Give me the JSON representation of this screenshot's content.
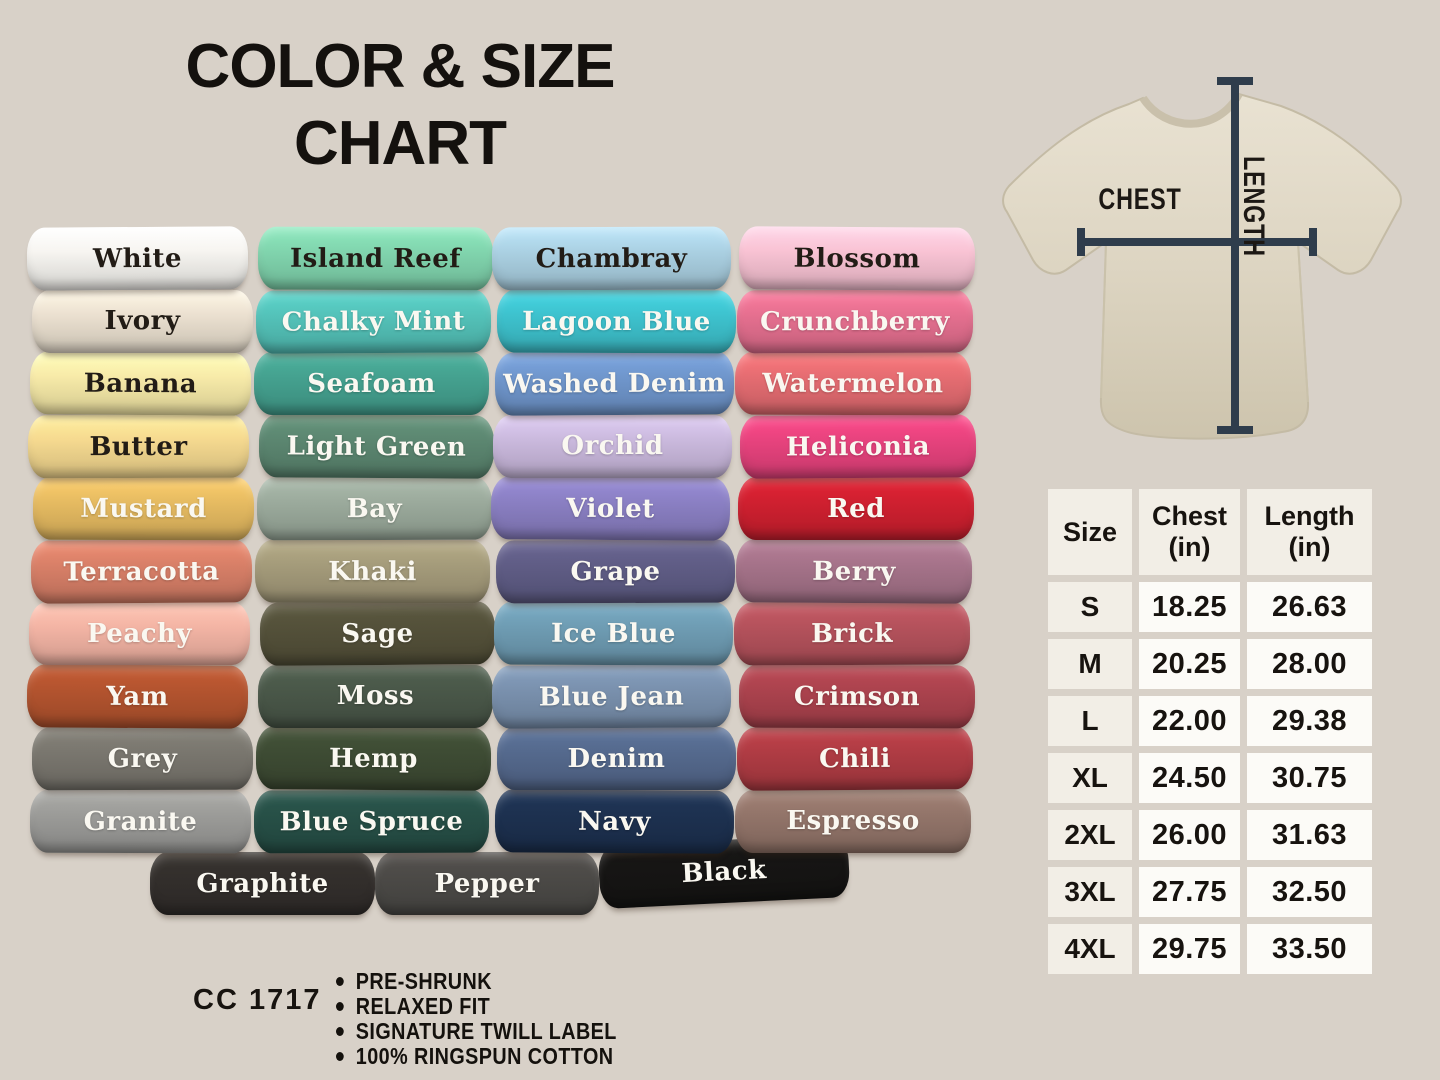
{
  "page": {
    "background": "#d8d1c8",
    "title_line1": "COLOR & SIZE",
    "title_line2": "CHART"
  },
  "color_grid": {
    "columns": [
      {
        "shirts": [
          {
            "name": "White",
            "hex": "#f7f5f1",
            "label": "dark"
          },
          {
            "name": "Ivory",
            "hex": "#ece1d1",
            "label": "dark"
          },
          {
            "name": "Banana",
            "hex": "#f8eba9",
            "label": "dark"
          },
          {
            "name": "Butter",
            "hex": "#f6da90",
            "label": "dark"
          },
          {
            "name": "Mustard",
            "hex": "#e7bc62",
            "label": "light"
          },
          {
            "name": "Terracotta",
            "hex": "#d98068",
            "label": "light"
          },
          {
            "name": "Peachy",
            "hex": "#f4b5a5",
            "label": "light"
          },
          {
            "name": "Yam",
            "hex": "#b4542f",
            "label": "light"
          },
          {
            "name": "Grey",
            "hex": "#7a776f",
            "label": "light"
          },
          {
            "name": "Granite",
            "hex": "#9c9c99",
            "label": "light"
          }
        ]
      },
      {
        "shirts": [
          {
            "name": "Island Reef",
            "hex": "#81d5ae",
            "label": "dark"
          },
          {
            "name": "Chalky Mint",
            "hex": "#54c3ba",
            "label": "light"
          },
          {
            "name": "Seafoam",
            "hex": "#45a290",
            "label": "light"
          },
          {
            "name": "Light Green",
            "hex": "#5c8771",
            "label": "light"
          },
          {
            "name": "Bay",
            "hex": "#9cab9d",
            "label": "light"
          },
          {
            "name": "Khaki",
            "hex": "#a59c7b",
            "label": "light"
          },
          {
            "name": "Sage",
            "hex": "#54513a",
            "label": "light"
          },
          {
            "name": "Moss",
            "hex": "#4a5849",
            "label": "light"
          },
          {
            "name": "Hemp",
            "hex": "#3e4c34",
            "label": "light"
          },
          {
            "name": "Blue Spruce",
            "hex": "#275047",
            "label": "light"
          }
        ]
      },
      {
        "shirts": [
          {
            "name": "Chambray",
            "hex": "#abd1e3",
            "label": "dark"
          },
          {
            "name": "Lagoon Blue",
            "hex": "#3ec3cf",
            "label": "light"
          },
          {
            "name": "Washed Denim",
            "hex": "#7097cd",
            "label": "light"
          },
          {
            "name": "Orchid",
            "hex": "#cbbade",
            "label": "light"
          },
          {
            "name": "Violet",
            "hex": "#8b80c4",
            "label": "light"
          },
          {
            "name": "Grape",
            "hex": "#605d86",
            "label": "light"
          },
          {
            "name": "Ice Blue",
            "hex": "#6f9db4",
            "label": "light"
          },
          {
            "name": "Blue Jean",
            "hex": "#7a91ae",
            "label": "light"
          },
          {
            "name": "Denim",
            "hex": "#556a8e",
            "label": "light"
          },
          {
            "name": "Navy",
            "hex": "#1d3150",
            "label": "light"
          }
        ]
      },
      {
        "shirts": [
          {
            "name": "Blossom",
            "hex": "#f9c3d4",
            "label": "dark"
          },
          {
            "name": "Crunchberry",
            "hex": "#e67090",
            "label": "light"
          },
          {
            "name": "Watermelon",
            "hex": "#e66d72",
            "label": "light"
          },
          {
            "name": "Heliconia",
            "hex": "#e8437e",
            "label": "light"
          },
          {
            "name": "Red",
            "hex": "#d02030",
            "label": "light"
          },
          {
            "name": "Berry",
            "hex": "#a6738a",
            "label": "light"
          },
          {
            "name": "Brick",
            "hex": "#b5525c",
            "label": "light"
          },
          {
            "name": "Crimson",
            "hex": "#ac434e",
            "label": "light"
          },
          {
            "name": "Chili",
            "hex": "#b03c44",
            "label": "light"
          },
          {
            "name": "Espresso",
            "hex": "#93756a",
            "label": "light"
          }
        ]
      }
    ],
    "bottom_row": [
      {
        "name": "Graphite",
        "hex": "#332f2c",
        "label": "light"
      },
      {
        "name": "Pepper",
        "hex": "#4c4a47",
        "label": "light"
      },
      {
        "name": "Black",
        "hex": "#161514",
        "label": "light"
      }
    ]
  },
  "diagram": {
    "chest_label": "CHEST",
    "length_label": "LENGTH",
    "shirt_color": "#ddd5c2",
    "line_color": "#2f3d4c"
  },
  "size_table": {
    "columns": [
      {
        "line1": "Size",
        "line2": ""
      },
      {
        "line1": "Chest",
        "line2": "(in)"
      },
      {
        "line1": "Length",
        "line2": "(in)"
      }
    ],
    "rows": [
      {
        "size": "S",
        "chest": "18.25",
        "length": "26.63"
      },
      {
        "size": "M",
        "chest": "20.25",
        "length": "28.00"
      },
      {
        "size": "L",
        "chest": "22.00",
        "length": "29.38"
      },
      {
        "size": "XL",
        "chest": "24.50",
        "length": "30.75"
      },
      {
        "size": "2XL",
        "chest": "26.00",
        "length": "31.63"
      },
      {
        "size": "3XL",
        "chest": "27.75",
        "length": "32.50"
      },
      {
        "size": "4XL",
        "chest": "29.75",
        "length": "33.50"
      }
    ]
  },
  "footer": {
    "style_code": "CC 1717",
    "features": [
      "PRE-SHRUNK",
      "RELAXED FIT",
      "SIGNATURE TWILL LABEL",
      "100% RINGSPUN COTTON"
    ]
  },
  "chart_data": {
    "type": "table",
    "title": "COLOR & SIZE CHART",
    "columns": [
      "Size",
      "Chest (in)",
      "Length (in)"
    ],
    "rows": [
      [
        "S",
        18.25,
        26.63
      ],
      [
        "M",
        20.25,
        28.0
      ],
      [
        "L",
        22.0,
        29.38
      ],
      [
        "XL",
        24.5,
        30.75
      ],
      [
        "2XL",
        26.0,
        31.63
      ],
      [
        "3XL",
        27.75,
        32.5
      ],
      [
        "4XL",
        29.75,
        33.5
      ]
    ],
    "color_names": [
      "White",
      "Ivory",
      "Banana",
      "Butter",
      "Mustard",
      "Terracotta",
      "Peachy",
      "Yam",
      "Grey",
      "Granite",
      "Island Reef",
      "Chalky Mint",
      "Seafoam",
      "Light Green",
      "Bay",
      "Khaki",
      "Sage",
      "Moss",
      "Hemp",
      "Blue Spruce",
      "Chambray",
      "Lagoon Blue",
      "Washed Denim",
      "Orchid",
      "Violet",
      "Grape",
      "Ice Blue",
      "Blue Jean",
      "Denim",
      "Navy",
      "Blossom",
      "Crunchberry",
      "Watermelon",
      "Heliconia",
      "Red",
      "Berry",
      "Brick",
      "Crimson",
      "Chili",
      "Espresso",
      "Graphite",
      "Pepper",
      "Black"
    ]
  }
}
